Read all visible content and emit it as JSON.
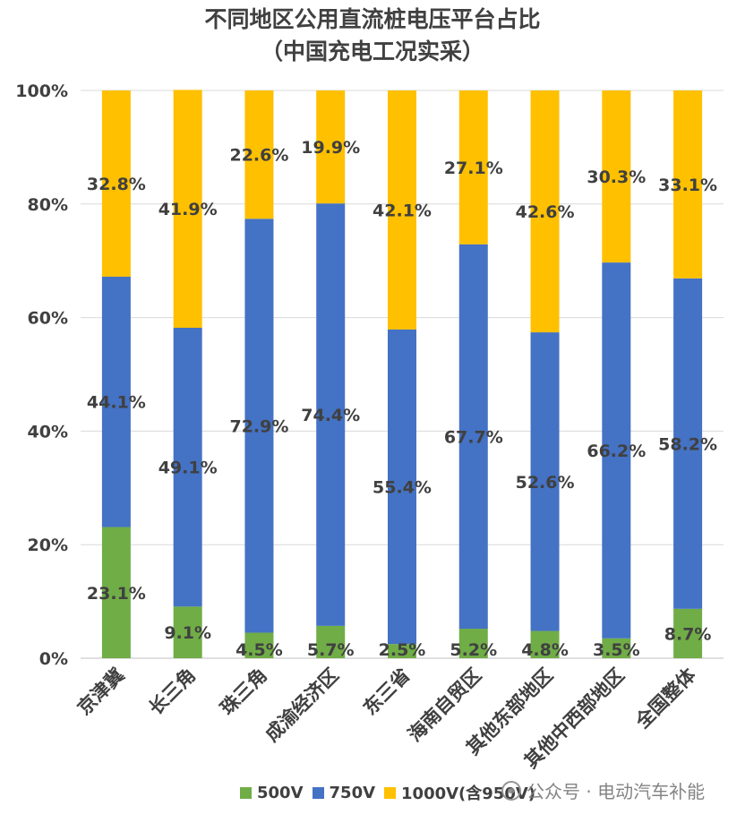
{
  "chart_data": {
    "type": "bar",
    "stacked": true,
    "title": "不同地区公用直流桩电压平台占比",
    "subtitle": "（中国充电工况实采）",
    "categories": [
      "京津冀",
      "长三角",
      "珠三角",
      "成渝经济区",
      "东三省",
      "海南自贸区",
      "其他东部地区",
      "其他中西部地区",
      "全国整体"
    ],
    "series": [
      {
        "name": "500V",
        "color": "#70AD47",
        "values": [
          23.1,
          9.1,
          4.5,
          5.7,
          2.5,
          5.2,
          4.8,
          3.5,
          8.7
        ],
        "labels": [
          "23.1%",
          "9.1%",
          "4.5%",
          "5.7%",
          "2.5%",
          "5.2%",
          "4.8%",
          "3.5%",
          "8.7%"
        ]
      },
      {
        "name": "750V",
        "color": "#4472C4",
        "values": [
          44.1,
          49.1,
          72.9,
          74.4,
          55.4,
          67.7,
          52.6,
          66.2,
          58.2
        ],
        "labels": [
          "44.1%",
          "49.1%",
          "72.9%",
          "74.4%",
          "55.4%",
          "67.7%",
          "52.6%",
          "66.2%",
          "58.2%"
        ]
      },
      {
        "name": "1000V(含950V)",
        "color": "#FFC000",
        "values": [
          32.8,
          41.9,
          22.6,
          19.9,
          42.1,
          27.1,
          42.6,
          30.3,
          33.1
        ],
        "labels": [
          "32.8%",
          "41.9%",
          "22.6%",
          "19.9%",
          "42.1%",
          "27.1%",
          "42.6%",
          "30.3%",
          "33.1%"
        ]
      }
    ],
    "yticks": [
      "0%",
      "20%",
      "40%",
      "60%",
      "80%",
      "100%"
    ],
    "ylim": [
      0,
      100
    ],
    "grid": true,
    "legend": "bottom"
  },
  "watermark": "公众号 · 电动汽车补能"
}
